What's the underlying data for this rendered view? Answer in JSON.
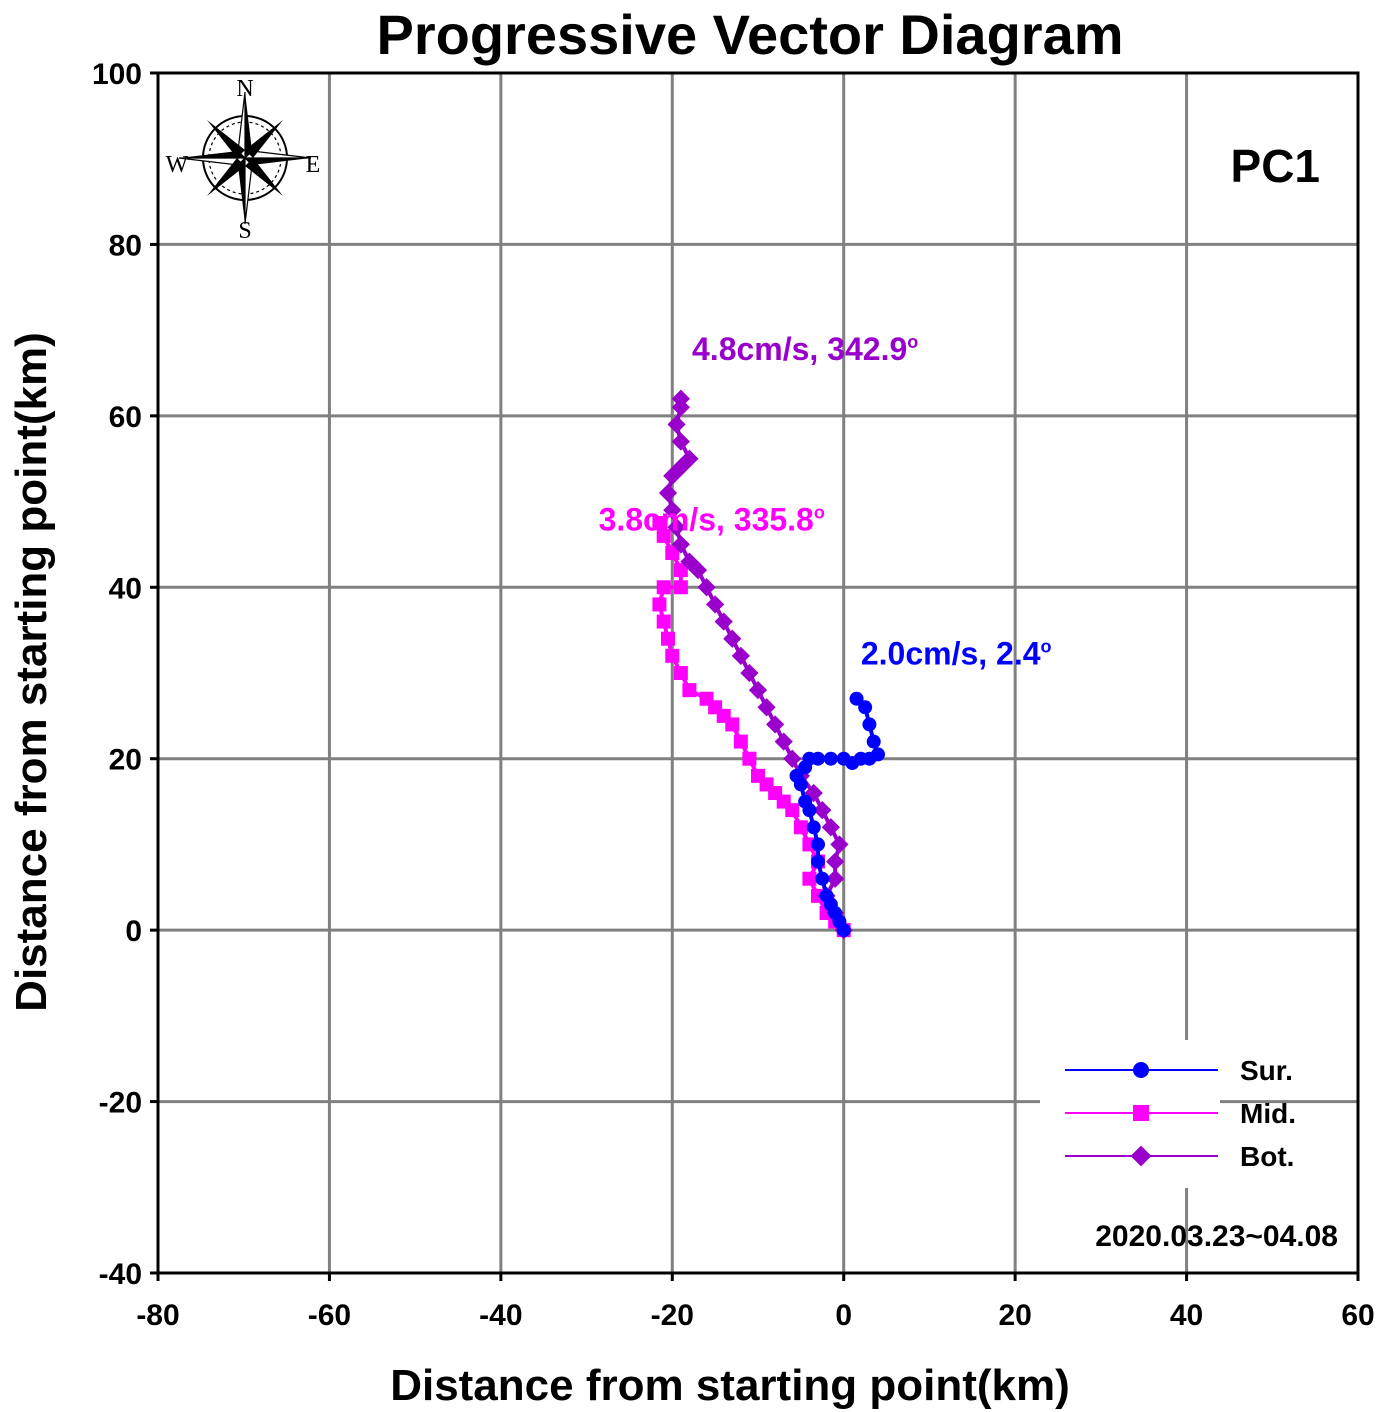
{
  "chart_data": {
    "type": "line",
    "title": "Progressive Vector Diagram",
    "xlabel": "Distance from starting point(km)",
    "ylabel": "Distance from starting point(km)",
    "xlim": [
      -80,
      60
    ],
    "ylim": [
      -40,
      100
    ],
    "xticks": [
      -80,
      -60,
      -40,
      -20,
      0,
      20,
      40,
      60
    ],
    "yticks": [
      -40,
      -20,
      0,
      20,
      40,
      60,
      80,
      100
    ],
    "grid": true,
    "panel_label": "PC1",
    "date_range": "2020.03.23~04.08",
    "legend_position": "bottom-right",
    "compass": {
      "n": "N",
      "s": "S",
      "e": "E",
      "w": "W"
    },
    "series": [
      {
        "name": "Sur.",
        "color": "#0000ff",
        "marker": "circle",
        "annotation": {
          "speed": "2.0cm/s, 2.4",
          "degree_symbol": "o"
        },
        "points": [
          [
            0,
            0
          ],
          [
            -0.5,
            1
          ],
          [
            -1,
            2
          ],
          [
            -1.5,
            3
          ],
          [
            -2,
            4
          ],
          [
            -2.5,
            6
          ],
          [
            -3,
            8
          ],
          [
            -3,
            10
          ],
          [
            -3.5,
            12
          ],
          [
            -4,
            14
          ],
          [
            -4.5,
            15
          ],
          [
            -5,
            17
          ],
          [
            -5.5,
            18
          ],
          [
            -4.5,
            19
          ],
          [
            -4,
            20
          ],
          [
            -3,
            20
          ],
          [
            -1.5,
            20
          ],
          [
            0,
            20
          ],
          [
            1,
            19.5
          ],
          [
            2,
            20
          ],
          [
            3,
            20
          ],
          [
            4,
            20.5
          ],
          [
            3.5,
            22
          ],
          [
            3,
            24
          ],
          [
            2.5,
            26
          ],
          [
            1.5,
            27
          ]
        ]
      },
      {
        "name": "Mid.",
        "color": "#ff00ff",
        "marker": "square",
        "annotation": {
          "speed": "3.8cm/s, 335.8",
          "degree_symbol": "o"
        },
        "points": [
          [
            0,
            0
          ],
          [
            -1,
            1
          ],
          [
            -2,
            2
          ],
          [
            -3,
            4
          ],
          [
            -4,
            6
          ],
          [
            -3,
            8
          ],
          [
            -4,
            10
          ],
          [
            -5,
            12
          ],
          [
            -6,
            14
          ],
          [
            -7,
            15
          ],
          [
            -8,
            16
          ],
          [
            -9,
            17
          ],
          [
            -10,
            18
          ],
          [
            -11,
            20
          ],
          [
            -12,
            22
          ],
          [
            -13,
            24
          ],
          [
            -14,
            25
          ],
          [
            -15,
            26
          ],
          [
            -16,
            27
          ],
          [
            -18,
            28
          ],
          [
            -19,
            30
          ],
          [
            -20,
            32
          ],
          [
            -20.5,
            34
          ],
          [
            -21,
            36
          ],
          [
            -21.5,
            38
          ],
          [
            -21,
            40
          ],
          [
            -19,
            40
          ],
          [
            -19,
            42
          ],
          [
            -20,
            44
          ],
          [
            -21,
            46
          ],
          [
            -21.5,
            47.5
          ]
        ]
      },
      {
        "name": "Bot.",
        "color": "#9900cc",
        "marker": "diamond",
        "annotation": {
          "speed": "4.8cm/s, 342.9",
          "degree_symbol": "o"
        },
        "points": [
          [
            0,
            0
          ],
          [
            -1,
            2
          ],
          [
            -2,
            4
          ],
          [
            -1,
            6
          ],
          [
            -1,
            8
          ],
          [
            -0.5,
            10
          ],
          [
            -1.5,
            12
          ],
          [
            -2.5,
            14
          ],
          [
            -3.5,
            16
          ],
          [
            -5,
            18
          ],
          [
            -6,
            20
          ],
          [
            -7,
            22
          ],
          [
            -8,
            24
          ],
          [
            -9,
            26
          ],
          [
            -10,
            28
          ],
          [
            -11,
            30
          ],
          [
            -12,
            32
          ],
          [
            -13,
            34
          ],
          [
            -14,
            36
          ],
          [
            -15,
            38
          ],
          [
            -16,
            40
          ],
          [
            -17,
            42
          ],
          [
            -18,
            43
          ],
          [
            -19,
            45
          ],
          [
            -19.5,
            47
          ],
          [
            -20,
            49
          ],
          [
            -20.5,
            51
          ],
          [
            -20,
            53
          ],
          [
            -19,
            54
          ],
          [
            -18,
            55
          ],
          [
            -19,
            57
          ],
          [
            -19.5,
            59
          ],
          [
            -19,
            61
          ],
          [
            -19,
            62
          ]
        ]
      }
    ]
  }
}
